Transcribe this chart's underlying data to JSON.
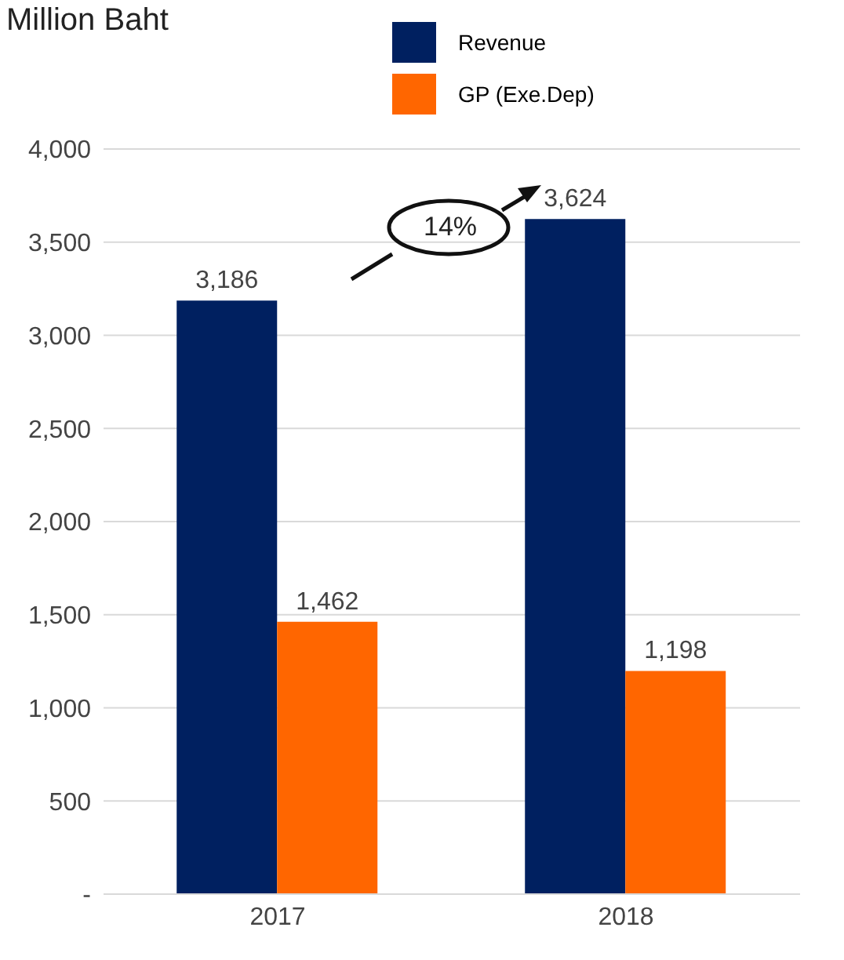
{
  "chart_data": {
    "type": "bar",
    "title": "Million Baht",
    "categories": [
      "2017",
      "2018"
    ],
    "series": [
      {
        "name": "Revenue",
        "color": "#002060",
        "values": [
          3186,
          3624
        ],
        "value_labels": [
          "3,186",
          "3,624"
        ]
      },
      {
        "name": "GP (Exe.Dep)",
        "color": "#ff6600",
        "values": [
          1462,
          1198
        ],
        "value_labels": [
          "1,462",
          "1,198"
        ]
      }
    ],
    "ylim": [
      0,
      4000
    ],
    "yticks": [
      {
        "value": 0,
        "label": "-"
      },
      500,
      {
        "value": 1000,
        "label": "1,000"
      },
      {
        "value": 1500,
        "label": "1,500"
      },
      {
        "value": 2000,
        "label": "2,000"
      },
      {
        "value": 2500,
        "label": "2,500"
      },
      {
        "value": 3000,
        "label": "3,000"
      },
      {
        "value": 3500,
        "label": "3,500"
      },
      {
        "value": 4000,
        "label": "4,000"
      }
    ],
    "grid": "y",
    "legend": "top",
    "annotations": [
      "14%"
    ]
  }
}
